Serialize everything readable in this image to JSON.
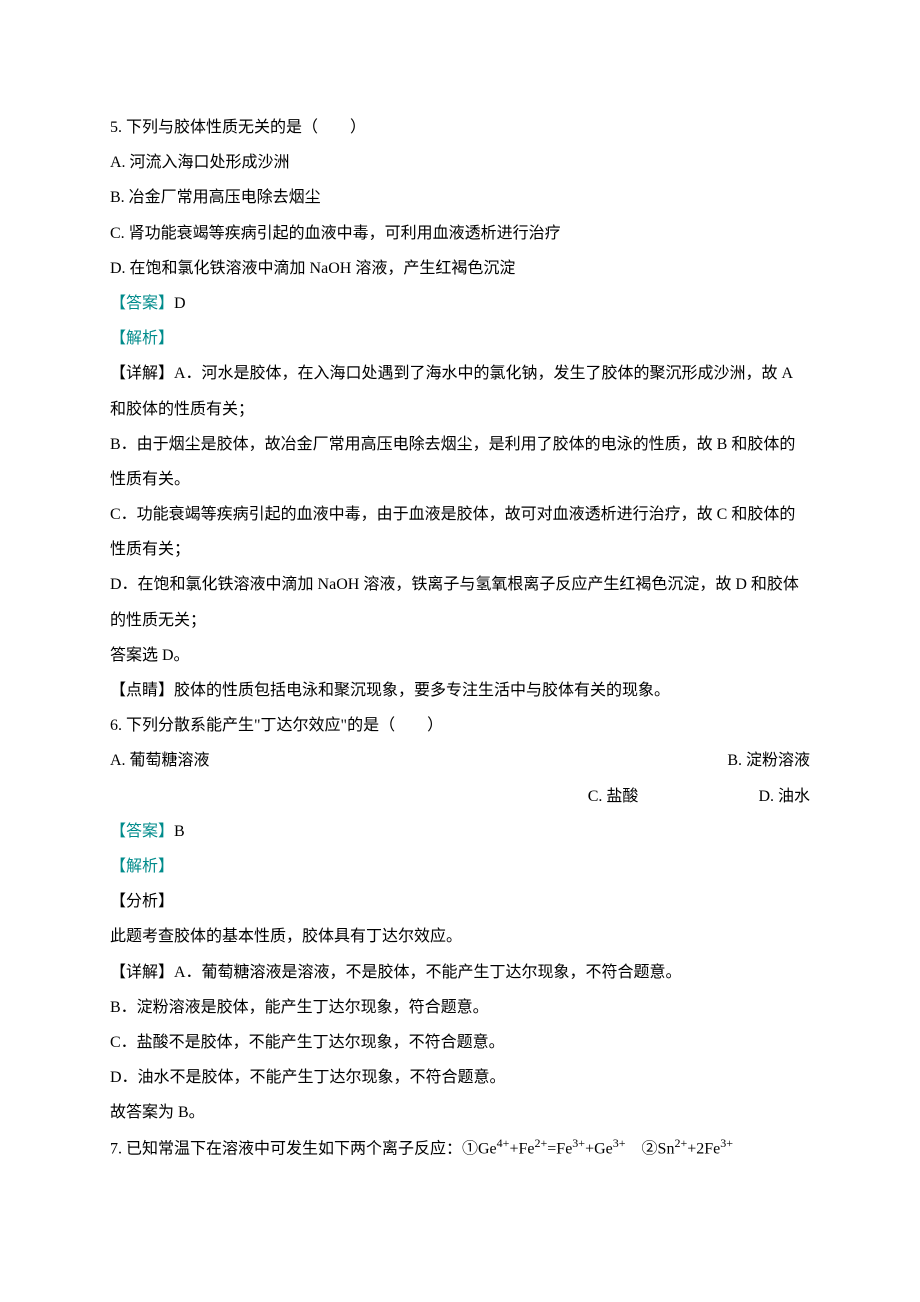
{
  "q5": {
    "stem": "5. 下列与胶体性质无关的是（　　）",
    "optA": "A. 河流入海口处形成沙洲",
    "optB": "B. 冶金厂常用高压电除去烟尘",
    "optC": "C. 肾功能衰竭等疾病引起的血液中毒，可利用血液透析进行治疗",
    "optD": "D. 在饱和氯化铁溶液中滴加 NaOH 溶液，产生红褐色沉淀",
    "answerLabel": "【答案】",
    "answerValue": "D",
    "analysisLabel": "【解析】",
    "detailA": "【详解】A．河水是胶体，在入海口处遇到了海水中的氯化钠，发生了胶体的聚沉形成沙洲，故 A 和胶体的性质有关；",
    "detailB": "B．由于烟尘是胶体，故冶金厂常用高压电除去烟尘，是利用了胶体的电泳的性质，故 B 和胶体的性质有关。",
    "detailC": "C．功能衰竭等疾病引起的血液中毒，由于血液是胶体，故可对血液透析进行治疗，故 C 和胶体的性质有关；",
    "detailD": "D．在饱和氯化铁溶液中滴加 NaOH 溶液，铁离子与氢氧根离子反应产生红褐色沉淀，故 D 和胶体的性质无关；",
    "conclusion": "答案选 D。",
    "tip": "【点睛】胶体的性质包括电泳和聚沉现象，要多专注生活中与胶体有关的现象。"
  },
  "q6": {
    "stem": "6. 下列分散系能产生\"丁达尔效应\"的是（　　）",
    "optA": "A. 葡萄糖溶液",
    "optB": "B. 淀粉溶液",
    "optC": "C. 盐酸",
    "optD": "D. 油水",
    "answerLabel": "【答案】",
    "answerValue": "B",
    "analysisLabel": "【解析】",
    "fenxiLabel": "【分析】",
    "fenxiText": "此题考查胶体的基本性质，胶体具有丁达尔效应。",
    "detailA": "【详解】A．葡萄糖溶液是溶液，不是胶体，不能产生丁达尔现象，不符合题意。",
    "detailB": "B．淀粉溶液是胶体，能产生丁达尔现象，符合题意。",
    "detailC": "C．盐酸不是胶体，不能产生丁达尔现象，不符合题意。",
    "detailD": "D．油水不是胶体，不能产生丁达尔现象，不符合题意。",
    "conclusion": "故答案为 B。"
  },
  "q7": {
    "stemPrefix": "7. 已知常温下在溶液中可发生如下两个离子反应：①Ge",
    "stemMid1": "+Fe",
    "stemMid2": "=Fe",
    "stemMid3": "+Ge",
    "stemMid4": "　②Sn",
    "stemMid5": "+2Fe",
    "sup4p": "4+",
    "sup2p": "2+",
    "sup3p": "3+"
  },
  "colors": {
    "text": "#000000",
    "accent": "#008b8b",
    "background": "#ffffff"
  }
}
